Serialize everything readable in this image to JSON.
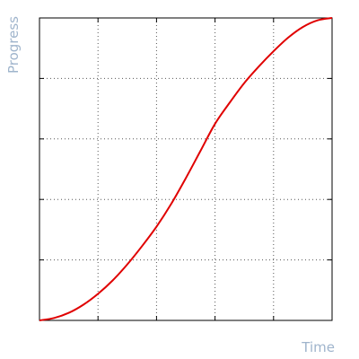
{
  "chart_data": {
    "type": "line",
    "title": "",
    "xlabel": "Time",
    "ylabel": "Progress",
    "xlim": [
      0,
      1
    ],
    "ylim": [
      0,
      1
    ],
    "grid": true,
    "x_ticks": [
      0,
      0.2,
      0.4,
      0.6,
      0.8,
      1.0
    ],
    "y_ticks": [
      0,
      0.2,
      0.4,
      0.6,
      0.8,
      1.0
    ],
    "show_tick_labels": false,
    "series": [
      {
        "color": "#e00000",
        "x": [
          0,
          0.05,
          0.1,
          0.15,
          0.2,
          0.25,
          0.3,
          0.35,
          0.4,
          0.45,
          0.5,
          0.55,
          0.6,
          0.65,
          0.7,
          0.75,
          0.8,
          0.85,
          0.9,
          0.95,
          1.0
        ],
        "y": [
          0,
          0.008,
          0.025,
          0.052,
          0.088,
          0.132,
          0.185,
          0.245,
          0.31,
          0.385,
          0.47,
          0.56,
          0.65,
          0.72,
          0.785,
          0.84,
          0.89,
          0.935,
          0.97,
          0.992,
          1.0
        ]
      }
    ]
  }
}
